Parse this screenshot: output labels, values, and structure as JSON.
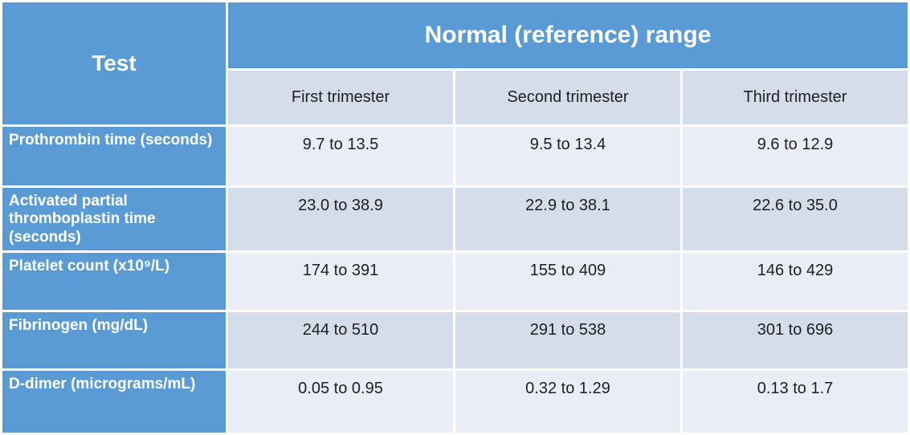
{
  "table": {
    "corner_header": "Test",
    "group_header": "Normal (reference) range",
    "column_headers": [
      "First trimester",
      "Second trimester",
      "Third trimester"
    ],
    "rows": [
      {
        "label": "Prothrombin time (seconds)",
        "values": [
          "9.7 to 13.5",
          "9.5 to 13.4",
          "9.6 to 12.9"
        ]
      },
      {
        "label": "Activated partial thromboplastin time (seconds)",
        "values": [
          "23.0 to 38.9",
          "22.9 to 38.1",
          "22.6 to 35.0"
        ]
      },
      {
        "label": "Platelet count (x10⁹/L)",
        "values": [
          "174 to 391",
          "155 to 409",
          "146 to 429"
        ]
      },
      {
        "label": "Fibrinogen (mg/dL)",
        "values": [
          "244 to 510",
          "291 to 538",
          "301 to 696"
        ]
      },
      {
        "label": "D-dimer (micrograms/mL)",
        "values": [
          "0.05 to 0.95",
          "0.32 to 1.29",
          "0.13 to 1.7"
        ]
      }
    ],
    "colors": {
      "header_blue": "#5B9BD5",
      "band_light": "#EAEDF5",
      "band_dark": "#D5DDEB",
      "grid_white": "#FFFFFF",
      "text_dark": "#1F1F1F"
    }
  }
}
